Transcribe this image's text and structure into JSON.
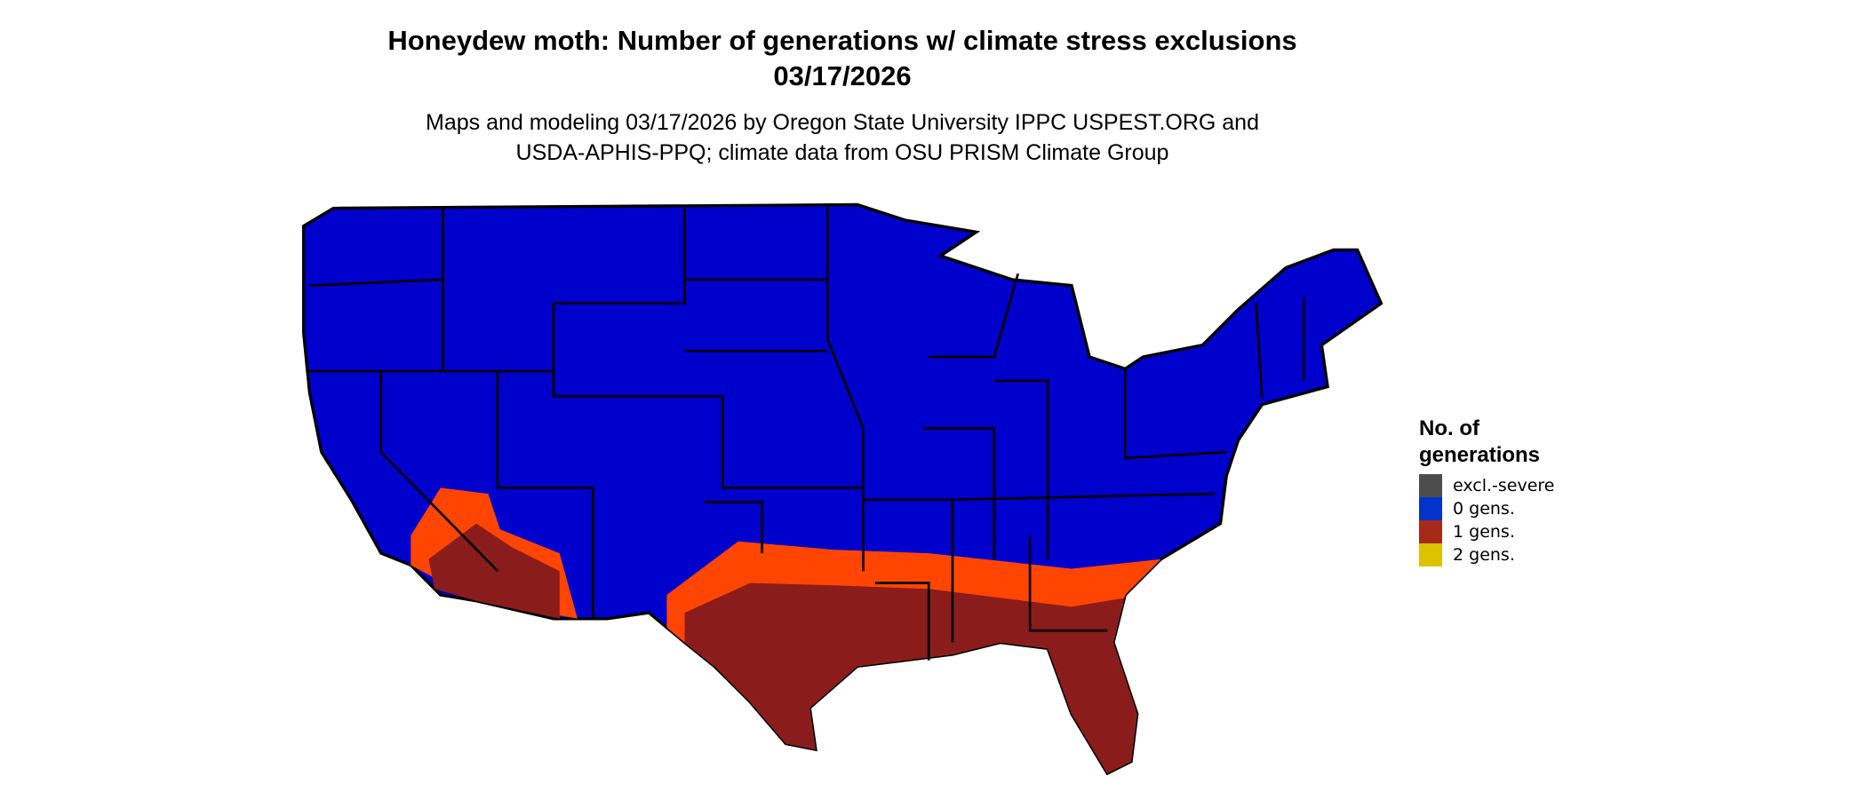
{
  "title_line1": "Honeydew moth: Number of generations w/ climate stress exclusions",
  "title_line2": "03/17/2026",
  "subtitle_line1": "Maps and modeling 03/17/2026 by Oregon State University IPPC USPEST.ORG and",
  "subtitle_line2": "USDA-APHIS-PPQ; climate data from OSU PRISM Climate Group",
  "legend": {
    "title_line1": "No. of",
    "title_line2": "generations",
    "items": [
      {
        "label": "excl.-severe",
        "color": "#4d4d4d"
      },
      {
        "label": "0 gens.",
        "color": "#0033cc"
      },
      {
        "label": "1 gens.",
        "color": "#a52a1a"
      },
      {
        "label": "2 gens.",
        "color": "#dcc300"
      }
    ]
  },
  "map_colors": {
    "land_zero": "#0000cc",
    "one_gen": "#8b1c1c",
    "fringe": "#ff4500",
    "border": "#000000"
  }
}
